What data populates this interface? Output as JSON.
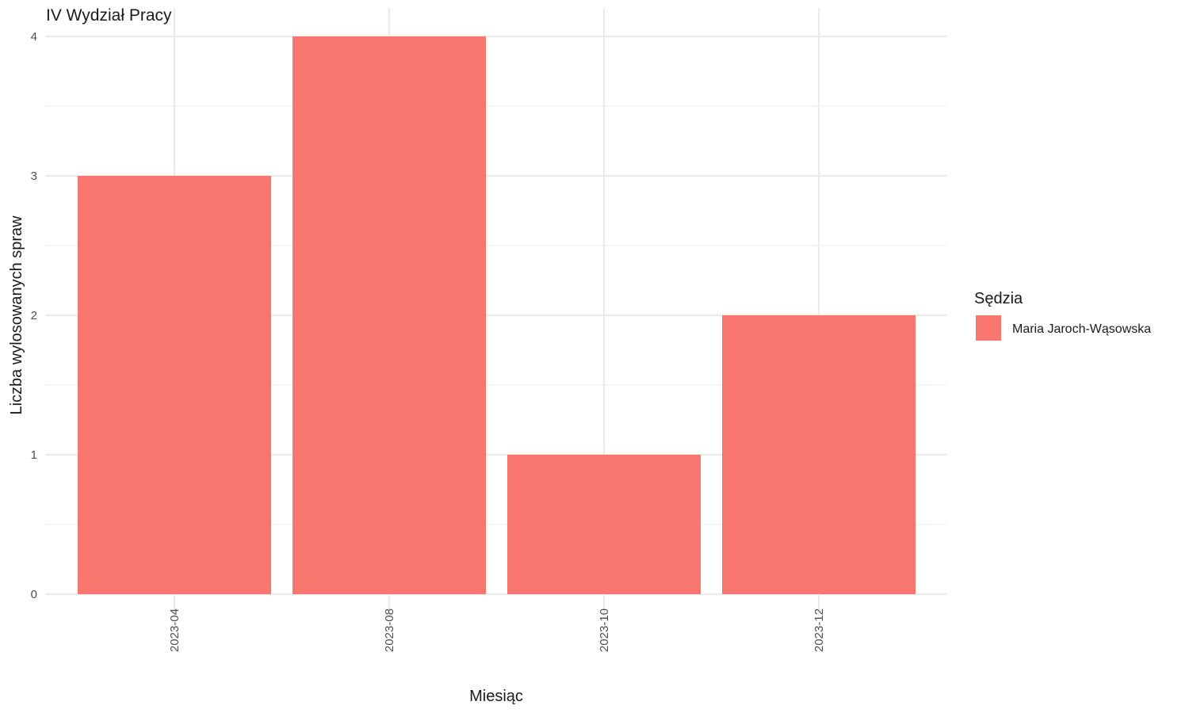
{
  "chart_data": {
    "type": "bar",
    "title": "IV Wydział Pracy",
    "xlabel": "Miesiąc",
    "ylabel": "Liczba wylosowanych spraw",
    "categories": [
      "2023-04",
      "2023-08",
      "2023-10",
      "2023-12"
    ],
    "series": [
      {
        "name": "Maria Jaroch-Wąsowska",
        "values": [
          3,
          4,
          1,
          2
        ],
        "color": "#F8766D"
      }
    ],
    "ylim": [
      0,
      4
    ],
    "yticks": [
      0,
      1,
      2,
      3,
      4
    ],
    "grid": true,
    "legend": {
      "title": "Sędzia",
      "position": "right"
    }
  }
}
